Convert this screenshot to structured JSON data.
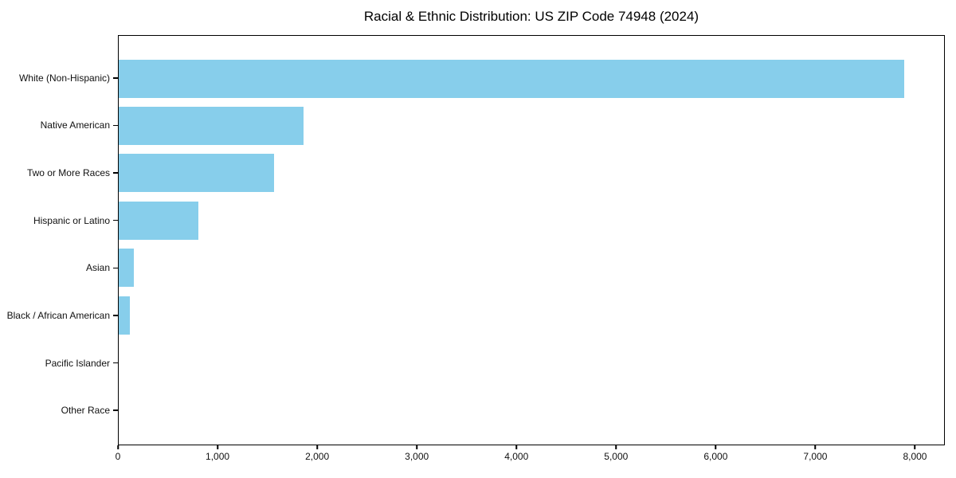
{
  "chart_data": {
    "type": "bar",
    "orientation": "horizontal",
    "title": "Racial & Ethnic Distribution: US ZIP Code 74948 (2024)",
    "categories": [
      "White (Non-Hispanic)",
      "Native American",
      "Two or More Races",
      "Hispanic or Latino",
      "Asian",
      "Black / African American",
      "Pacific Islander",
      "Other Race"
    ],
    "values": [
      7900,
      1860,
      1560,
      800,
      150,
      110,
      0,
      0
    ],
    "xlabel": "",
    "ylabel": "",
    "xlim": [
      0,
      8300
    ],
    "xticks": [
      {
        "value": 0,
        "label": "0"
      },
      {
        "value": 1000,
        "label": "1,000"
      },
      {
        "value": 2000,
        "label": "2,000"
      },
      {
        "value": 3000,
        "label": "3,000"
      },
      {
        "value": 4000,
        "label": "4,000"
      },
      {
        "value": 5000,
        "label": "5,000"
      },
      {
        "value": 6000,
        "label": "6,000"
      },
      {
        "value": 7000,
        "label": "7,000"
      },
      {
        "value": 8000,
        "label": "8,000"
      }
    ],
    "grid": false,
    "legend": null,
    "colors": {
      "bar": "#87CEEB",
      "axis": "#000000",
      "text": "#111111"
    }
  }
}
